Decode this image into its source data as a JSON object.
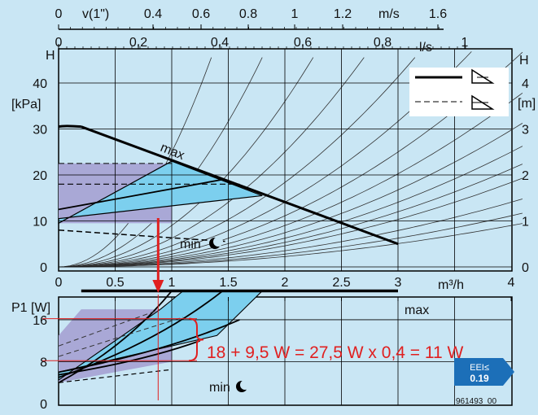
{
  "chart_data": [
    {
      "type": "line",
      "axes": {
        "x_bottom": {
          "label": "m³/h",
          "ticks": [
            "0",
            "0.5",
            "1",
            "1.5",
            "2",
            "2.5",
            "3",
            "4"
          ]
        },
        "x_top_velocity": {
          "label": "m/s",
          "prefix_label": "v(1\")",
          "ticks": [
            "0",
            "0.4",
            "0.6",
            "0.8",
            "1",
            "1.2",
            "1.6"
          ]
        },
        "x_top_flow": {
          "label": "l/s",
          "ticks": [
            "0",
            "0.2",
            "0.4",
            "0.6",
            "0.8",
            "1"
          ]
        },
        "y_left": {
          "label_top": "H",
          "unit": "[kPa]",
          "ticks": [
            "0",
            "10",
            "20",
            "30",
            "40"
          ],
          "ylim": [
            0,
            45
          ]
        },
        "y_right": {
          "label_top": "H",
          "unit": "[m]",
          "ticks": [
            "0",
            "1",
            "2",
            "3",
            "4"
          ],
          "ylim": [
            0,
            4.5
          ]
        }
      },
      "series": [
        {
          "name": "max",
          "x": [
            0.2,
            3.0
          ],
          "y": [
            30.5,
            5.0
          ]
        },
        {
          "name": "min",
          "x": [
            0.0,
            1.5
          ],
          "y": [
            8.0,
            5.5
          ]
        }
      ],
      "regions": {
        "purple_area": {
          "x": [
            0,
            1.0
          ],
          "y": [
            9.5,
            22.5
          ]
        },
        "blue_area": [
          [
            0,
            9.5
          ],
          [
            1.0,
            23.0
          ],
          [
            1.8,
            15.5
          ],
          [
            0,
            10.5
          ]
        ]
      },
      "legend_symbol": "proportional / constant pressure",
      "labels": {
        "max": "max",
        "min": "min"
      }
    },
    {
      "type": "line",
      "axes": {
        "x": {
          "ticks": [
            "0",
            "0.5",
            "1",
            "1.5",
            "2",
            "2.5",
            "3",
            "4"
          ],
          "label": "m³/h"
        },
        "y": {
          "label": "P1 [W]",
          "ticks": [
            "0",
            "8",
            "16"
          ],
          "ylim": [
            0,
            24
          ]
        }
      },
      "series": [
        {
          "name": "max",
          "x": [
            0.2,
            3.0
          ],
          "y": [
            21.5,
            21.5
          ]
        },
        {
          "name": "min",
          "x": [
            0.0,
            1.0
          ],
          "y": [
            4.0,
            6.5
          ]
        }
      ],
      "annotation": "18 + 9,5 W = 27,5 W x 0,4 = 11 W",
      "eei": {
        "label": "EEI≤",
        "value": "0.19"
      },
      "code": "961493_00"
    }
  ]
}
